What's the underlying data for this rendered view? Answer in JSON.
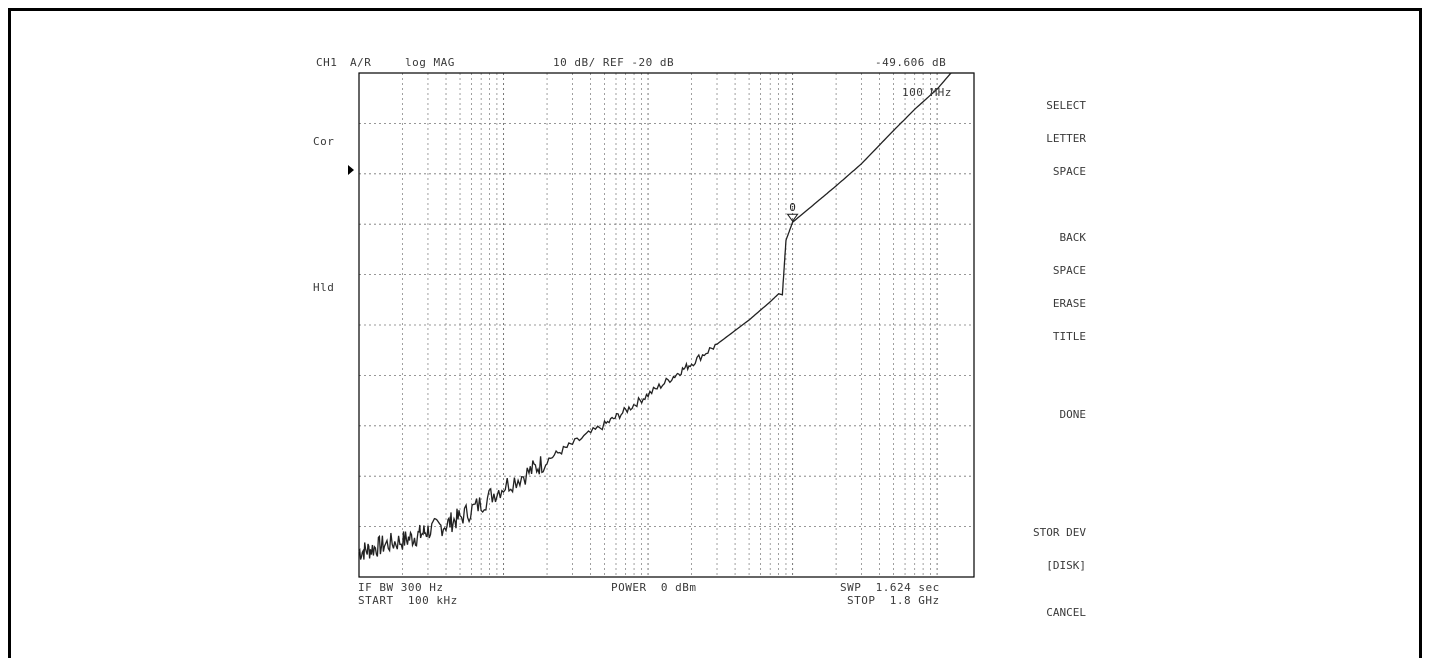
{
  "header": {
    "channel": "CH1",
    "param": "A/R",
    "format": "log MAG",
    "scale": "10 dB/ REF -20 dB",
    "marker_value": "-49.606 dB",
    "marker_freq": "100 MHz"
  },
  "left_labels": {
    "cor": "Cor",
    "hld": "Hld"
  },
  "footer": {
    "ifbw": "IF BW 300 Hz",
    "start": "START  100 kHz",
    "power": "POWER  0 dBm",
    "sweep": "SWP  1.624 sec",
    "stop": "STOP  1.8 GHz"
  },
  "softkeys": [
    {
      "line1": "SELECT",
      "line2": "LETTER"
    },
    {
      "line1": "SPACE",
      "line2": ""
    },
    {
      "line1": "BACK",
      "line2": "SPACE"
    },
    {
      "line1": "ERASE",
      "line2": "TITLE"
    },
    {
      "line1": "DONE",
      "line2": ""
    },
    {
      "line1": "STOR DEV",
      "line2": "[DISK]"
    },
    {
      "line1": "CANCEL",
      "line2": ""
    }
  ],
  "marker_label": "0",
  "colors": {
    "trace": "#222222",
    "grid": "#777777",
    "frame": "#000000"
  },
  "chart_data": {
    "type": "line",
    "title": "",
    "xlabel": "",
    "ylabel": "",
    "x_scale": "log",
    "x_unit": "Hz",
    "xlim": [
      100000,
      1800000000
    ],
    "ylim": [
      -120,
      -20
    ],
    "y_per_div": 10,
    "grid": true,
    "marker": {
      "x": 100000000,
      "y": -49.606
    },
    "series": [
      {
        "x": [
          100000,
          120000,
          150000,
          200000,
          250000,
          300000,
          400000,
          500000,
          700000,
          1000000,
          1500000,
          2000000,
          3000000,
          5000000,
          7000000,
          10000000,
          15000000,
          20000000,
          30000000,
          50000000,
          70000000,
          80000000,
          85000000,
          90000000,
          100000000,
          150000000,
          200000000,
          300000000,
          500000000,
          700000000,
          1000000000,
          1300000000,
          1500000000,
          1800000000
        ],
        "y": [
          -115.0,
          -114.5,
          -113.6,
          -112.8,
          -111.9,
          -110.8,
          -109.6,
          -108.2,
          -105.4,
          -102.0,
          -99.2,
          -96.8,
          -93.6,
          -89.8,
          -87.0,
          -83.8,
          -80.2,
          -77.6,
          -73.8,
          -69.0,
          -65.4,
          -63.8,
          -64.0,
          -53.2,
          -49.6,
          -45.4,
          -42.4,
          -38.0,
          -31.4,
          -27.2,
          -23.2,
          -19.4,
          -17.8,
          -17.6
        ]
      }
    ]
  }
}
